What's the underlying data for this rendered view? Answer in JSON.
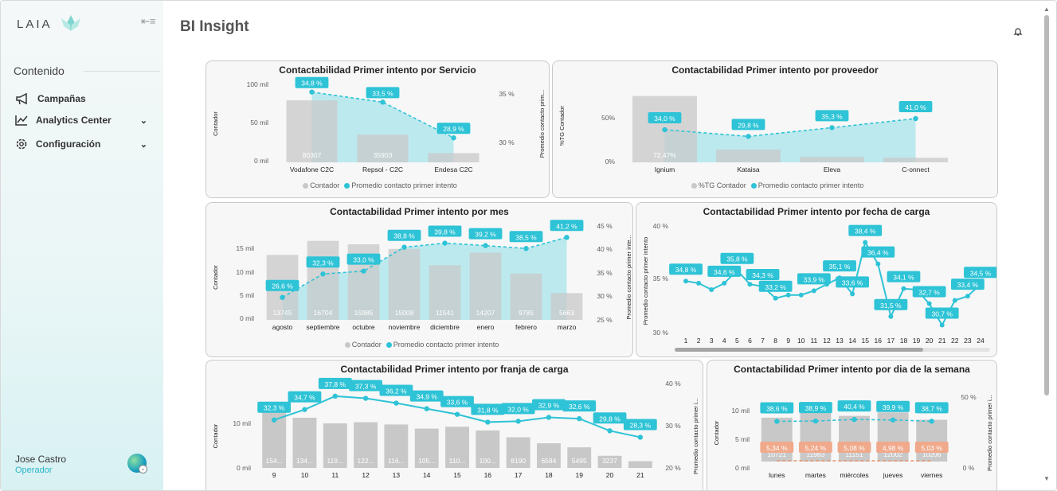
{
  "app": {
    "logo_text": "LAIA",
    "page_title": "BI Insight"
  },
  "sidebar": {
    "section": "Contenido",
    "items": [
      {
        "label": "Campañas"
      },
      {
        "label": "Analytics Center"
      },
      {
        "label": "Configuración"
      }
    ]
  },
  "user": {
    "name": "Jose Castro",
    "role": "Operador"
  },
  "colors": {
    "bar": "#c8c8c8",
    "teal": "#2ec3d6",
    "area": "#b2e6ec",
    "orange": "#e8936b"
  },
  "charts": {
    "servicio": {
      "title": "Contactabilidad Primer intento por Servicio",
      "legend": [
        "Contador",
        "Promedio contacto primer intento"
      ],
      "chart_data": {
        "type": "bar",
        "categories": [
          "Vodafone C2C",
          "Repsol - C2C",
          "Endesa C2C"
        ],
        "series": [
          {
            "name": "Contador",
            "values": [
              80307,
              35903,
              12000
            ]
          },
          {
            "name": "Promedio contacto primer intento",
            "values": [
              34.8,
              33.5,
              28.9
            ]
          }
        ],
        "bar_labels": [
          "80307",
          "35903",
          ""
        ],
        "line_labels": [
          "34,8 %",
          "33,5 %",
          "28,9 %"
        ],
        "y_left_ticks": [
          "100 mil",
          "50 mil",
          "0 mil"
        ],
        "y_right_ticks": [
          "35 %",
          "30 %"
        ],
        "ylabel": "Contador",
        "y2label": "Promedio contacto prim..."
      }
    },
    "proveedor": {
      "title": "Contactabilidad Primer intento por proveedor",
      "legend": [
        "%TG Contador",
        "Promedio contacto primer intento"
      ],
      "chart_data": {
        "type": "bar",
        "categories": [
          "Ignium",
          "Kataisa",
          "Eleva",
          "C-onnect"
        ],
        "series": [
          {
            "name": "%TG Contador",
            "values": [
              72.47,
              14,
              6,
              5
            ]
          },
          {
            "name": "Promedio contacto primer intento",
            "values": [
              34.0,
              29.8,
              35.3,
              41.0
            ]
          }
        ],
        "bar_labels": [
          "72,47%",
          "",
          "",
          ""
        ],
        "line_labels": [
          "34,0 %",
          "29,8 %",
          "35,3 %",
          "41,0 %"
        ],
        "y_left_ticks": [
          "50%",
          "0%"
        ],
        "ylabel": "%TG Contador"
      }
    },
    "mes": {
      "title": "Contactabilidad Primer intento por mes",
      "legend": [
        "Contador",
        "Promedio contacto primer intento"
      ],
      "chart_data": {
        "type": "bar",
        "categories": [
          "agosto",
          "septiembre",
          "octubre",
          "noviembre",
          "diciembre",
          "enero",
          "febrero",
          "marzo"
        ],
        "series": [
          {
            "name": "Contador",
            "values": [
              13745,
              16704,
              15985,
              15008,
              11541,
              14207,
              9785,
              5663
            ]
          },
          {
            "name": "Promedio contacto primer intento",
            "values": [
              26.6,
              32.3,
              33.0,
              38.8,
              39.8,
              39.2,
              38.5,
              41.2
            ]
          }
        ],
        "bar_labels": [
          "13745",
          "16704",
          "15985",
          "15008",
          "11541",
          "14207",
          "9785",
          "5663"
        ],
        "line_labels": [
          "26,6 %",
          "32,3 %",
          "33,0 %",
          "38,8 %",
          "39,8 %",
          "39,2 %",
          "38,5 %",
          "41,2 %"
        ],
        "y_left_ticks": [
          "15 mil",
          "10 mil",
          "5 mil",
          "0 mil"
        ],
        "y_right_ticks": [
          "45 %",
          "40 %",
          "35 %",
          "30 %",
          "25 %"
        ],
        "ylabel": "Contador",
        "y2label": "Promedio contacto primer inte..."
      }
    },
    "fecha": {
      "title": "Contactabilidad Primer intento por fecha de carga",
      "chart_data": {
        "type": "line",
        "categories": [
          "1",
          "2",
          "3",
          "4",
          "5",
          "6",
          "7",
          "8",
          "9",
          "10",
          "11",
          "12",
          "13",
          "14",
          "15",
          "16",
          "17",
          "18",
          "19",
          "20",
          "21",
          "22",
          "23",
          "24"
        ],
        "values": [
          34.8,
          34.6,
          34.0,
          34.6,
          35.8,
          34.5,
          34.3,
          33.2,
          33.5,
          33.5,
          33.9,
          34.5,
          35.1,
          33.6,
          38.4,
          36.4,
          31.5,
          34.1,
          34.0,
          32.7,
          30.7,
          33.0,
          33.4,
          34.5
        ],
        "point_labels": [
          "34,8 %",
          "",
          "",
          "34,6 %",
          "35,8 %",
          "",
          "34,3 %",
          "33,2 %",
          "",
          "",
          "33,9 %",
          "",
          "35,1 %",
          "33,6 %",
          "38,4 %",
          "36,4 %",
          "31,5 %",
          "34,1 %",
          "",
          "32,7 %",
          "30,7 %",
          "",
          "33,4 %",
          "34,5 %"
        ],
        "y_ticks": [
          "40 %",
          "35 %",
          "30 %"
        ],
        "ylabel": "Promedio contacto primer intento"
      }
    },
    "franja": {
      "title": "Contactabilidad Primer intento por franja de carga",
      "chart_data": {
        "type": "bar",
        "categories": [
          "9",
          "10",
          "11",
          "12",
          "13",
          "14",
          "15",
          "16",
          "17",
          "18",
          "19",
          "20",
          "21"
        ],
        "series": [
          {
            "name": "Contador",
            "values": [
              15400,
              13400,
              11900,
              12200,
              11600,
              10500,
              11000,
              10000,
              8190,
              6584,
              5495,
              3237,
              1800
            ]
          },
          {
            "name": "Promedio contacto primer intento",
            "values": [
              32.3,
              34.7,
              37.8,
              37.3,
              36.2,
              34.9,
              33.6,
              31.8,
              32.0,
              32.9,
              32.6,
              29.8,
              28.3
            ]
          }
        ],
        "bar_labels": [
          "154...",
          "134...",
          "119...",
          "122...",
          "116...",
          "105...",
          "110...",
          "100...",
          "8190",
          "6584",
          "5495",
          "3237",
          ""
        ],
        "line_labels": [
          "32,3 %",
          "34,7 %",
          "37,8 %",
          "37,3 %",
          "36,2 %",
          "34,9 %",
          "33,6 %",
          "31,8 %",
          "32,0 %",
          "32,9 %",
          "32,6 %",
          "29,8 %",
          "28,3 %"
        ],
        "y_left_ticks": [
          "10 mil",
          "0 mil"
        ],
        "y_right_ticks": [
          "40 %",
          "30 %",
          "20 %"
        ],
        "ylabel": "Contador",
        "y2label": "Promedio contacto primer i..."
      }
    },
    "dia": {
      "title": "Contactabilidad Primer intento por dia de la semana",
      "chart_data": {
        "type": "bar",
        "categories": [
          "lunes",
          "martes",
          "miércoles",
          "jueves",
          "viernes"
        ],
        "series": [
          {
            "name": "Contador",
            "values": [
              10721,
              11983,
              11151,
              12002,
              10206
            ]
          },
          {
            "name": "Promedio contacto primer intento",
            "values": [
              38.6,
              38.9,
              40.4,
              39.9,
              38.7
            ]
          },
          {
            "values": [
              5.34,
              5.24,
              5.08,
              4.98,
              5.03
            ]
          }
        ],
        "bar_labels": [
          "10721",
          "11983",
          "11151",
          "12002",
          "10206"
        ],
        "line_labels": [
          "38,6 %",
          "38,9 %",
          "40,4 %",
          "39,9 %",
          "38,7 %"
        ],
        "line2_labels": [
          "5,34 %",
          "5,24 %",
          "5,08 %",
          "4,98 %",
          "5,03 %"
        ],
        "y_left_ticks": [
          "10 mil",
          "5 mil",
          "0 mil"
        ],
        "y_right_ticks": [
          "50 %",
          "0 %"
        ],
        "ylabel": "Contador",
        "y2label": "Promedio contacto primer i..."
      }
    }
  }
}
